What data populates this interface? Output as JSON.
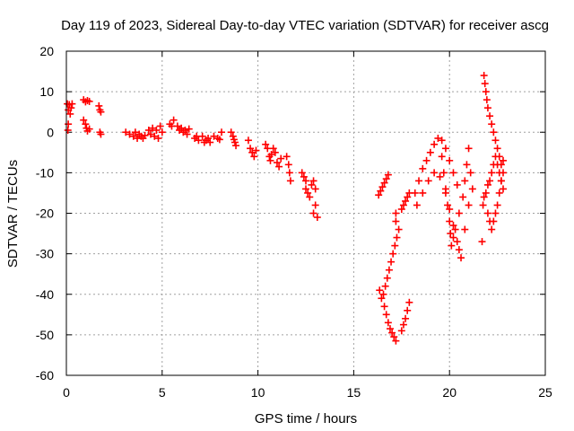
{
  "chart_data": {
    "type": "scatter",
    "title": "Day 119 of 2023, Sidereal Day-to-day VTEC variation (SDTVAR) for receiver ascg",
    "xlabel": "GPS time / hours",
    "ylabel": "SDTVAR / TECUs",
    "xlim": [
      0,
      25
    ],
    "ylim": [
      -60,
      20
    ],
    "xticks": [
      "0",
      "5",
      "10",
      "15",
      "20",
      "25"
    ],
    "yticks": [
      "20",
      "10",
      "0",
      "-10",
      "-20",
      "-30",
      "-40",
      "-50",
      "-60"
    ],
    "grid": true,
    "marker": "+",
    "color": "#ff0000",
    "series": [
      {
        "name": "s1",
        "points": [
          [
            0.05,
            7
          ],
          [
            0.1,
            5.5
          ],
          [
            0.15,
            6.8
          ],
          [
            0.2,
            4.5
          ],
          [
            0.25,
            6
          ],
          [
            0.3,
            7
          ],
          [
            0.1,
            2
          ],
          [
            0.08,
            0.5
          ]
        ]
      },
      {
        "name": "s2",
        "points": [
          [
            0.9,
            8
          ],
          [
            1.0,
            7.5
          ],
          [
            1.1,
            7.8
          ],
          [
            1.2,
            7.6
          ],
          [
            0.9,
            3
          ],
          [
            1.0,
            2
          ],
          [
            1.05,
            1
          ],
          [
            1.1,
            0.3
          ],
          [
            1.2,
            0.8
          ]
        ]
      },
      {
        "name": "s3",
        "points": [
          [
            1.7,
            6.5
          ],
          [
            1.75,
            5.5
          ],
          [
            1.8,
            5
          ],
          [
            1.75,
            0
          ],
          [
            1.8,
            -0.5
          ]
        ]
      },
      {
        "name": "s4",
        "points": [
          [
            3.1,
            0
          ],
          [
            3.3,
            -0.5
          ],
          [
            3.5,
            -1
          ],
          [
            3.6,
            0
          ],
          [
            3.7,
            -1.5
          ],
          [
            3.8,
            -0.5
          ],
          [
            3.9,
            -1
          ],
          [
            4.0,
            -1.5
          ],
          [
            4.1,
            -0.8
          ],
          [
            4.3,
            0.5
          ],
          [
            4.4,
            -0.5
          ],
          [
            4.5,
            1
          ],
          [
            4.6,
            -1
          ],
          [
            4.7,
            0.5
          ],
          [
            4.8,
            -1.5
          ],
          [
            4.9,
            1.5
          ],
          [
            5.0,
            0
          ]
        ]
      },
      {
        "name": "s5",
        "points": [
          [
            5.4,
            2
          ],
          [
            5.5,
            1.5
          ],
          [
            5.6,
            3
          ],
          [
            5.8,
            1.5
          ],
          [
            5.9,
            0.5
          ],
          [
            6.0,
            1
          ],
          [
            6.1,
            0
          ],
          [
            6.2,
            0.5
          ],
          [
            6.3,
            -0.5
          ],
          [
            6.4,
            0.8
          ]
        ]
      },
      {
        "name": "s6",
        "points": [
          [
            6.7,
            -1.5
          ],
          [
            6.8,
            -1
          ],
          [
            6.9,
            -2
          ],
          [
            7.1,
            -1
          ],
          [
            7.2,
            -2.5
          ],
          [
            7.3,
            -2
          ],
          [
            7.4,
            -1.5
          ],
          [
            7.5,
            -2.5
          ],
          [
            7.7,
            -1
          ],
          [
            7.9,
            -1.5
          ],
          [
            8.0,
            -1.8
          ],
          [
            8.1,
            0
          ]
        ]
      },
      {
        "name": "s7",
        "points": [
          [
            8.6,
            0
          ],
          [
            8.7,
            -1
          ],
          [
            8.75,
            -1.8
          ],
          [
            8.8,
            -2.5
          ],
          [
            8.85,
            -3.3
          ]
        ]
      },
      {
        "name": "s8",
        "points": [
          [
            9.5,
            -2
          ],
          [
            9.6,
            -4
          ],
          [
            9.7,
            -5
          ],
          [
            9.8,
            -6
          ],
          [
            9.9,
            -4.5
          ]
        ]
      },
      {
        "name": "s9",
        "points": [
          [
            10.4,
            -3
          ],
          [
            10.5,
            -4
          ],
          [
            10.6,
            -6
          ],
          [
            10.65,
            -7
          ],
          [
            10.7,
            -5.5
          ],
          [
            10.8,
            -4
          ],
          [
            10.9,
            -5
          ],
          [
            11.0,
            -7.5
          ],
          [
            11.1,
            -8.5
          ],
          [
            11.2,
            -6.5
          ]
        ]
      },
      {
        "name": "s10",
        "points": [
          [
            11.5,
            -6
          ],
          [
            11.6,
            -8
          ],
          [
            11.65,
            -10
          ],
          [
            11.7,
            -12
          ]
        ]
      },
      {
        "name": "s11",
        "points": [
          [
            12.3,
            -10
          ],
          [
            12.4,
            -11
          ],
          [
            12.5,
            -12
          ],
          [
            12.5,
            -14
          ],
          [
            12.6,
            -15
          ],
          [
            12.7,
            -16
          ],
          [
            12.8,
            -13
          ],
          [
            12.9,
            -12
          ],
          [
            13.0,
            -14
          ],
          [
            13.0,
            -18
          ],
          [
            13.1,
            -21
          ],
          [
            12.9,
            -20
          ]
        ]
      },
      {
        "name": "s12",
        "points": [
          [
            16.3,
            -15.5
          ],
          [
            16.4,
            -14.5
          ],
          [
            16.5,
            -13.5
          ],
          [
            16.6,
            -12.5
          ],
          [
            16.7,
            -11.5
          ],
          [
            16.8,
            -10.5
          ],
          [
            16.35,
            -39
          ],
          [
            16.45,
            -41
          ],
          [
            16.55,
            -40
          ],
          [
            16.65,
            -38
          ],
          [
            16.75,
            -36
          ],
          [
            16.85,
            -34
          ],
          [
            16.95,
            -32
          ],
          [
            17.05,
            -30
          ],
          [
            17.15,
            -28
          ],
          [
            17.25,
            -26
          ],
          [
            17.35,
            -24
          ],
          [
            16.6,
            -43
          ],
          [
            16.7,
            -45
          ],
          [
            16.8,
            -47
          ],
          [
            16.9,
            -48.5
          ],
          [
            17.0,
            -49.5
          ],
          [
            17.1,
            -50.5
          ],
          [
            17.2,
            -51.5
          ]
        ]
      },
      {
        "name": "s13",
        "points": [
          [
            17.5,
            -19
          ],
          [
            17.6,
            -18
          ],
          [
            17.7,
            -17
          ],
          [
            17.8,
            -16
          ],
          [
            17.9,
            -15
          ],
          [
            17.5,
            -49
          ],
          [
            17.6,
            -47.5
          ],
          [
            17.7,
            -46
          ],
          [
            17.8,
            -44
          ],
          [
            17.9,
            -42
          ],
          [
            17.2,
            -22
          ],
          [
            17.2,
            -20
          ]
        ]
      },
      {
        "name": "s14",
        "points": [
          [
            18.2,
            -15
          ],
          [
            18.4,
            -12
          ],
          [
            18.6,
            -9
          ],
          [
            18.8,
            -7
          ],
          [
            19.0,
            -5
          ],
          [
            19.2,
            -3
          ],
          [
            19.4,
            -1.5
          ],
          [
            19.6,
            -2
          ],
          [
            19.8,
            -4
          ],
          [
            20.0,
            -7
          ],
          [
            20.2,
            -10
          ],
          [
            20.4,
            -13
          ],
          [
            18.3,
            -18
          ],
          [
            18.6,
            -15
          ],
          [
            18.9,
            -12
          ],
          [
            19.2,
            -10
          ],
          [
            19.5,
            -11
          ],
          [
            19.8,
            -15
          ],
          [
            20.0,
            -19
          ],
          [
            20.2,
            -23
          ],
          [
            20.4,
            -27
          ],
          [
            20.5,
            -29
          ],
          [
            20.6,
            -31
          ]
        ]
      },
      {
        "name": "s15",
        "points": [
          [
            19.6,
            -6
          ],
          [
            19.7,
            -10
          ],
          [
            19.8,
            -14
          ],
          [
            19.9,
            -18
          ],
          [
            20.0,
            -22
          ],
          [
            20.05,
            -25
          ],
          [
            20.1,
            -28
          ],
          [
            20.2,
            -26
          ],
          [
            20.3,
            -24
          ],
          [
            20.5,
            -20
          ],
          [
            20.7,
            -16
          ],
          [
            20.8,
            -12
          ],
          [
            20.9,
            -8
          ],
          [
            21.0,
            -4
          ],
          [
            21.1,
            -10
          ],
          [
            21.2,
            -14
          ],
          [
            21.0,
            -18
          ],
          [
            20.8,
            -24
          ]
        ]
      },
      {
        "name": "s16",
        "points": [
          [
            21.7,
            -27
          ],
          [
            21.75,
            -18
          ],
          [
            21.8,
            -16
          ],
          [
            21.9,
            -15
          ],
          [
            22.0,
            -13
          ],
          [
            22.1,
            -12
          ],
          [
            22.2,
            -10
          ],
          [
            22.3,
            -8
          ],
          [
            22.4,
            -6
          ],
          [
            22.5,
            -8
          ],
          [
            22.6,
            -10
          ],
          [
            22.7,
            -12
          ],
          [
            22.8,
            -14
          ],
          [
            21.8,
            14
          ],
          [
            21.85,
            12
          ],
          [
            21.9,
            10
          ],
          [
            21.95,
            8
          ],
          [
            22.0,
            6
          ],
          [
            22.1,
            4
          ],
          [
            22.2,
            2
          ],
          [
            22.3,
            0
          ],
          [
            22.4,
            -2
          ],
          [
            22.5,
            -4
          ],
          [
            22.6,
            -6
          ],
          [
            22.7,
            -8
          ],
          [
            22.8,
            -7
          ],
          [
            22.0,
            -20
          ],
          [
            22.1,
            -22
          ],
          [
            22.2,
            -24
          ],
          [
            22.3,
            -22
          ],
          [
            22.4,
            -20
          ],
          [
            22.5,
            -18
          ],
          [
            22.6,
            -15
          ],
          [
            22.7,
            -12
          ],
          [
            22.8,
            -10
          ]
        ]
      }
    ]
  }
}
